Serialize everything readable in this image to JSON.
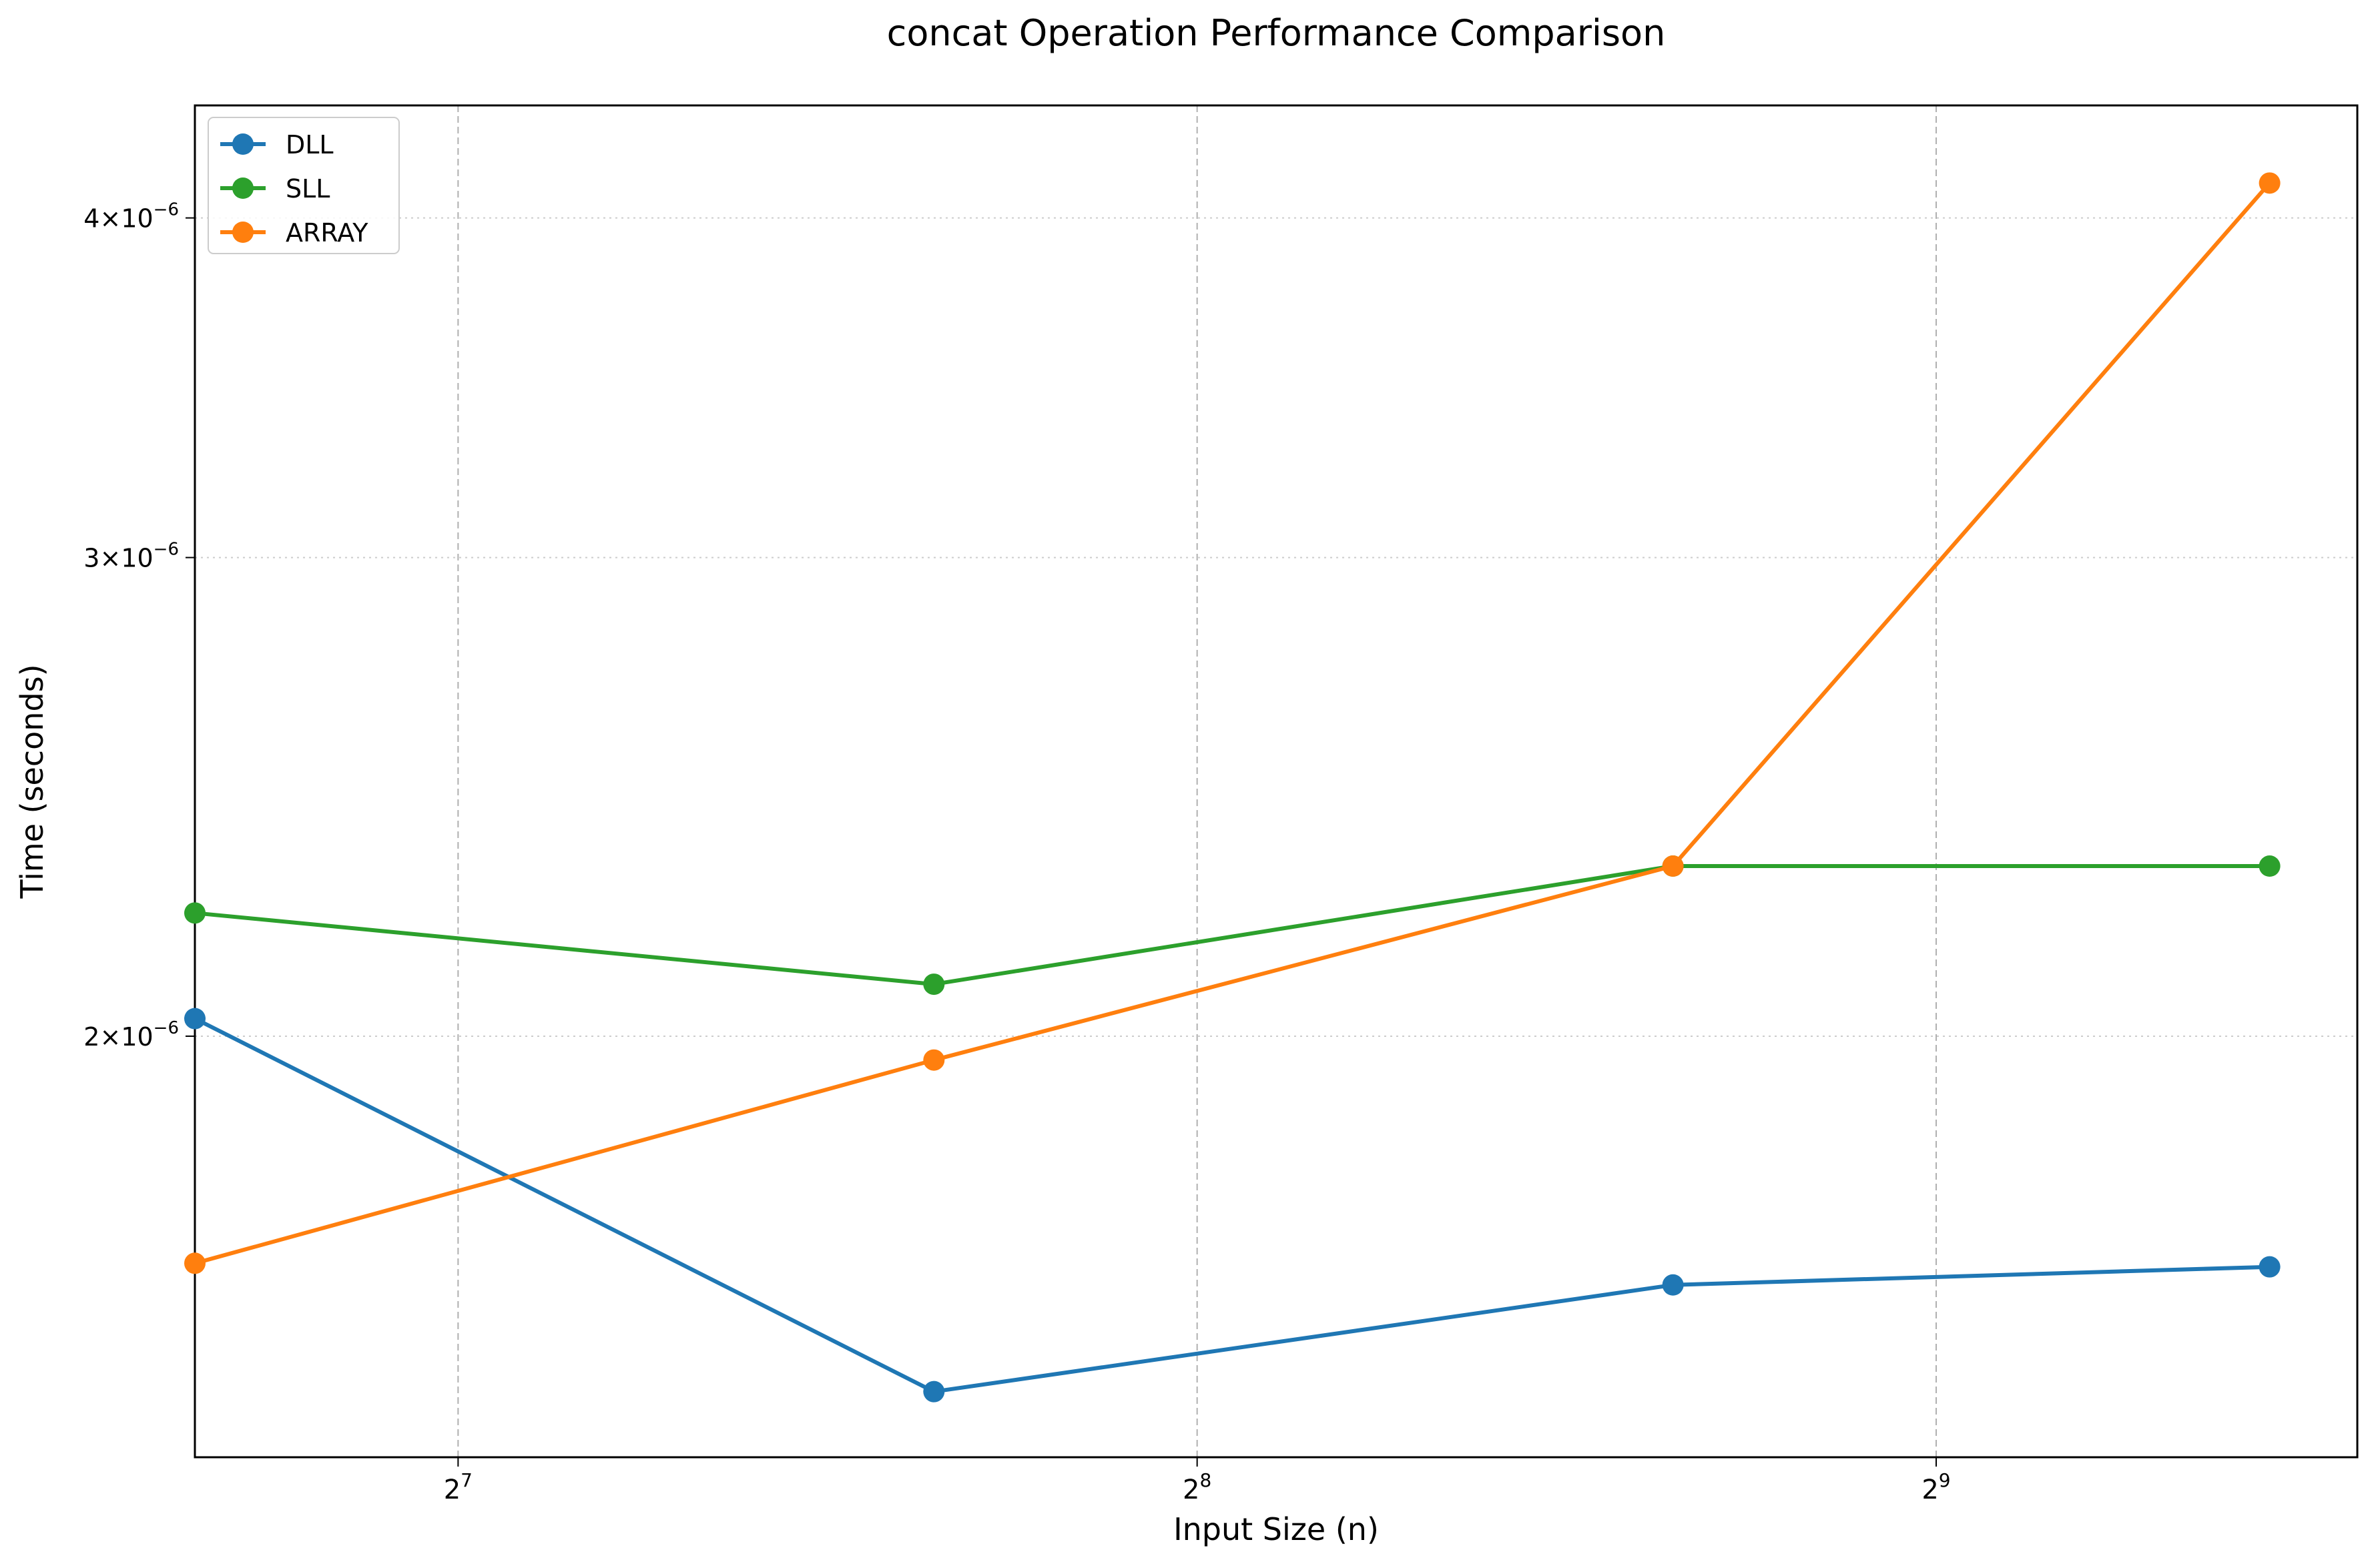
{
  "chart_data": {
    "type": "line",
    "title": "concat Operation Performance Comparison",
    "xlabel": "Input Size (n)",
    "ylabel": "Time (seconds)",
    "x_scale": "log2",
    "y_scale": "log",
    "xlim": [
      100,
      760
    ],
    "ylim": [
      1.4e-06,
      4.4e-06
    ],
    "x": [
      100,
      200,
      400,
      700
    ],
    "x_ticks": [
      {
        "value": 128,
        "base": "2",
        "exp": "7"
      },
      {
        "value": 256,
        "base": "2",
        "exp": "8"
      },
      {
        "value": 512,
        "base": "2",
        "exp": "9"
      }
    ],
    "y_ticks": [
      {
        "value": 2e-06,
        "mant": "2",
        "times": "×",
        "base": "10",
        "exp": "−6"
      },
      {
        "value": 3e-06,
        "mant": "3",
        "times": "×",
        "base": "10",
        "exp": "−6"
      },
      {
        "value": 4e-06,
        "mant": "4",
        "times": "×",
        "base": "10",
        "exp": "−6"
      }
    ],
    "grid": {
      "x": "dashed",
      "y": "dotted"
    },
    "legend_position": "top-left",
    "series": [
      {
        "name": "DLL",
        "color": "#1f77b4",
        "values": [
          2.03e-06,
          1.48e-06,
          1.62e-06,
          1.645e-06
        ]
      },
      {
        "name": "SLL",
        "color": "#2ca02c",
        "values": [
          2.22e-06,
          2.09e-06,
          2.31e-06,
          2.31e-06
        ]
      },
      {
        "name": "ARRAY",
        "color": "#ff7f0e",
        "values": [
          1.65e-06,
          1.96e-06,
          2.31e-06,
          4.12e-06
        ]
      }
    ]
  }
}
